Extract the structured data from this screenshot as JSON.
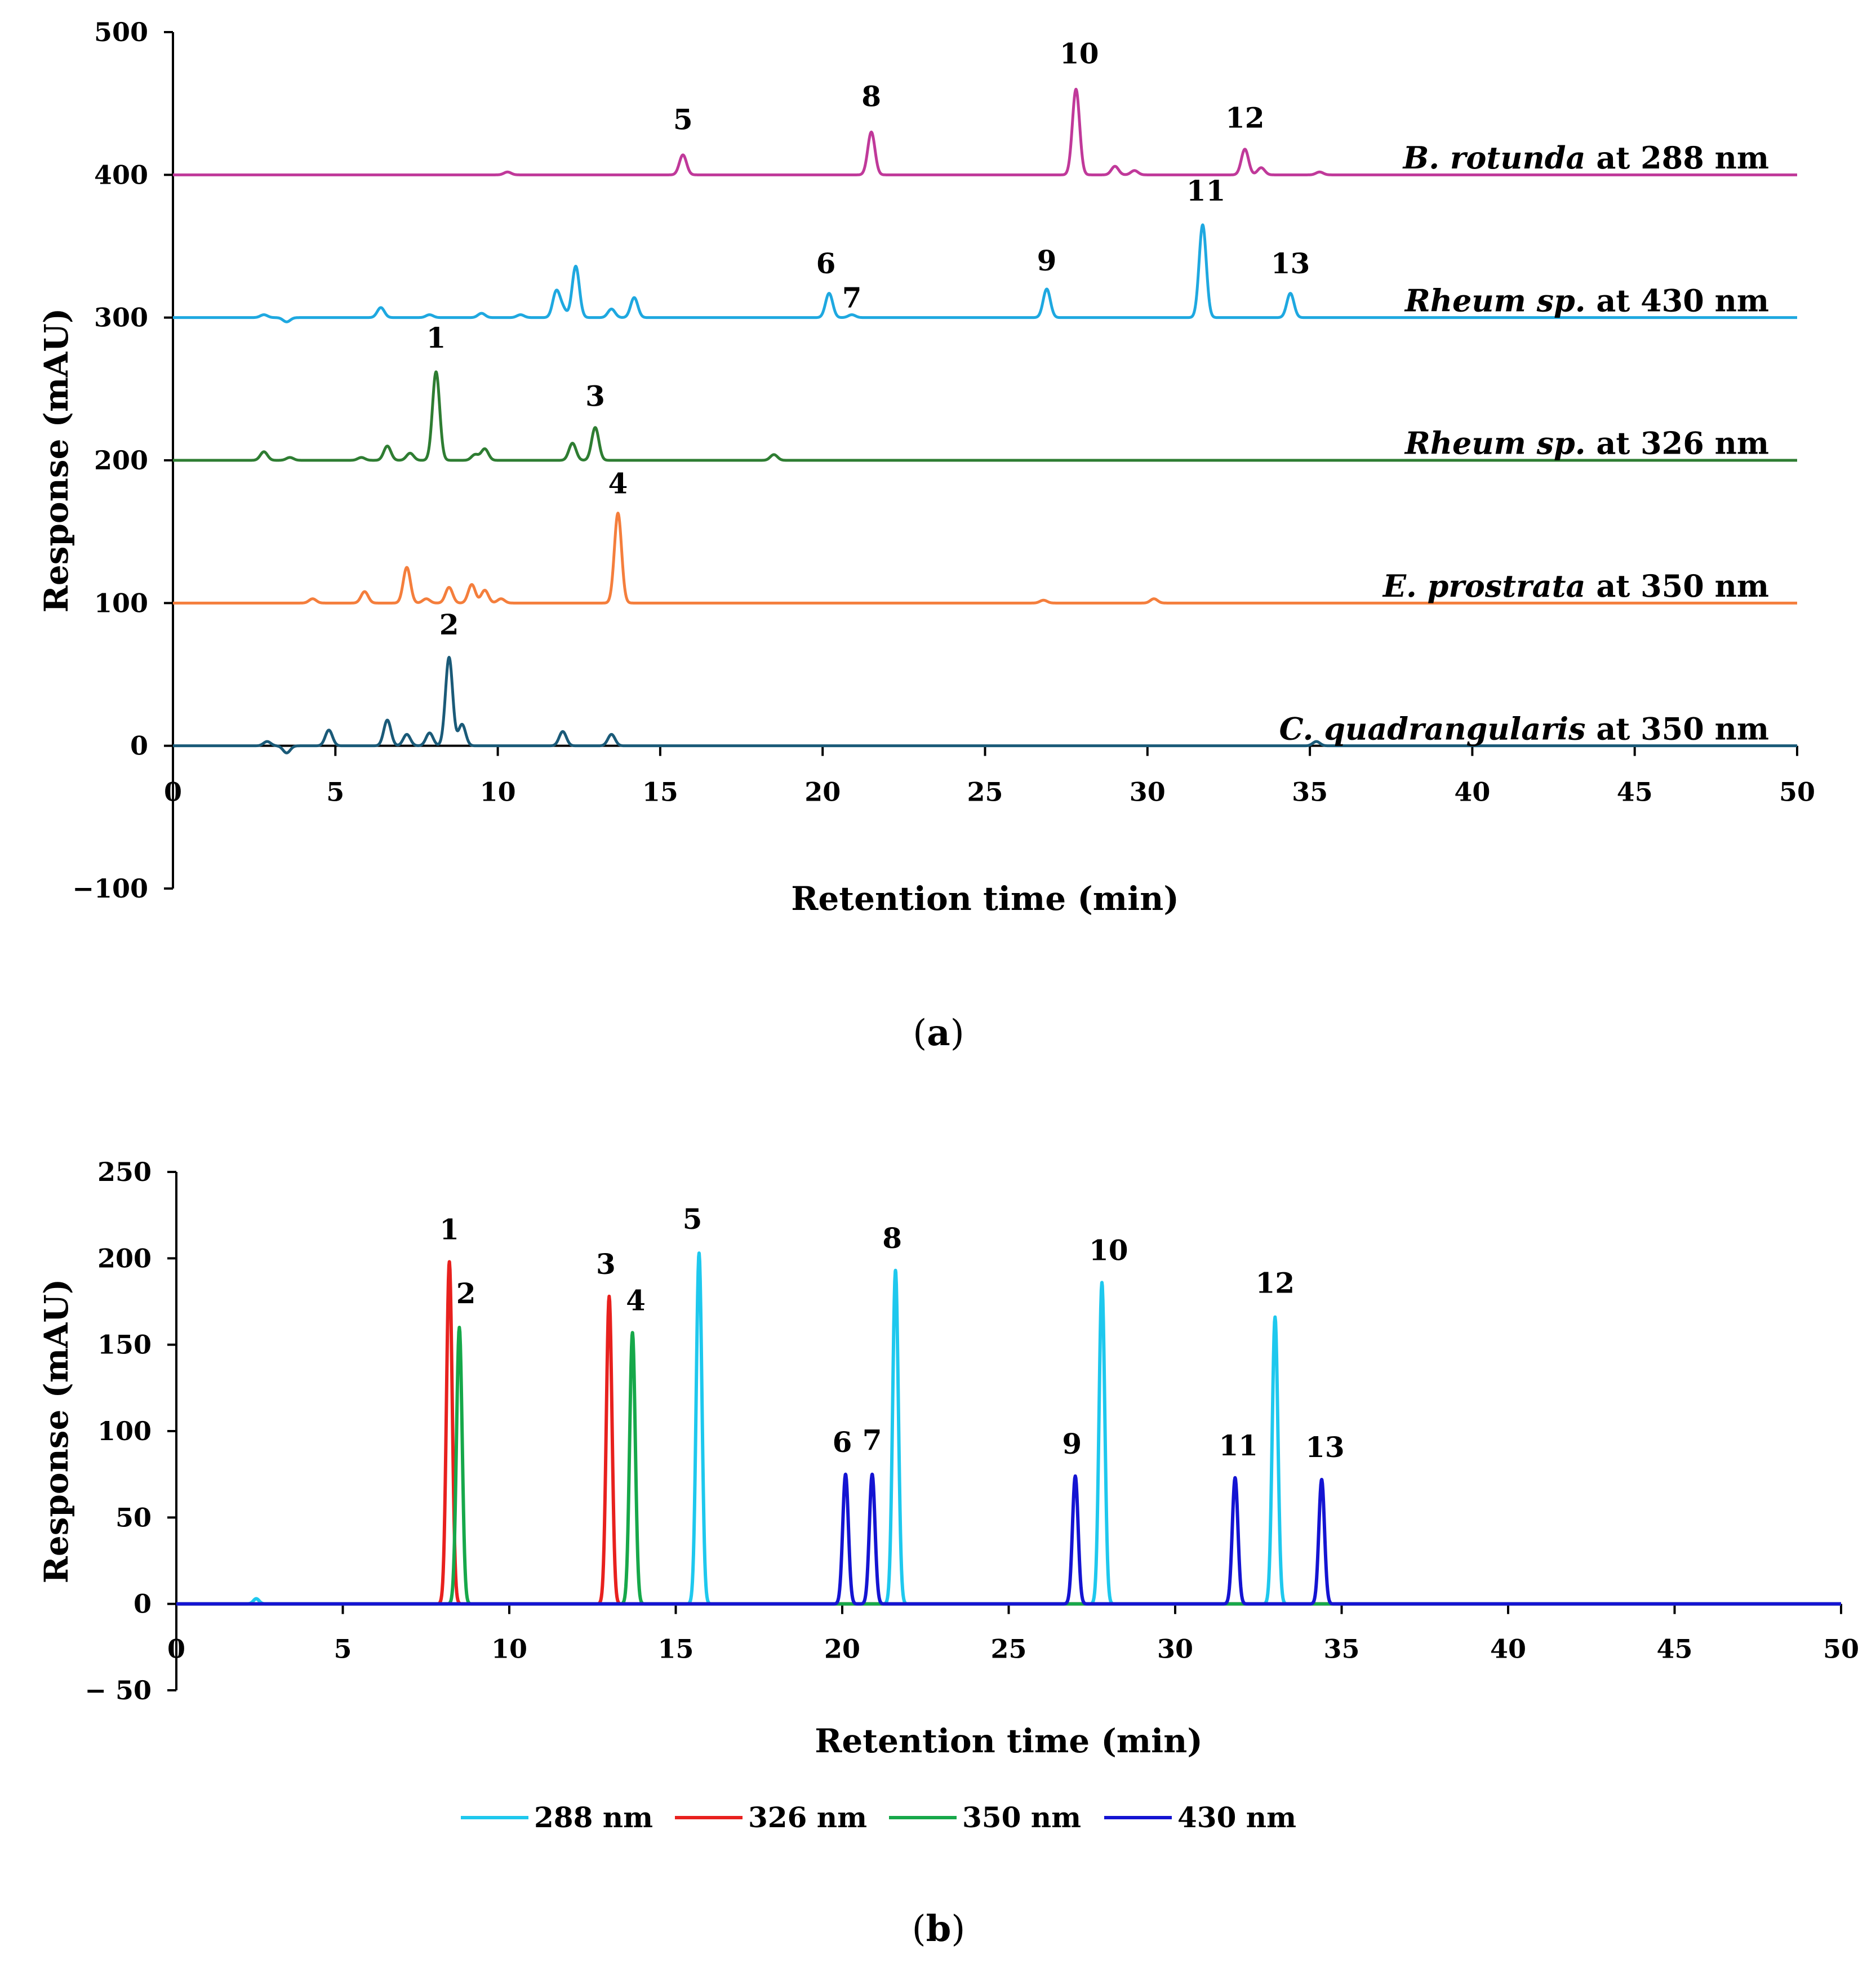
{
  "chart_data": [
    {
      "panel": "a",
      "type": "line",
      "caption": "(a)",
      "caption_letter": "a",
      "xlabel": "Retention time (min)",
      "ylabel": "Response (mAU)",
      "xlim": [
        0,
        50
      ],
      "ylim": [
        -100,
        500
      ],
      "xticks": [
        0,
        5,
        10,
        15,
        20,
        25,
        30,
        35,
        40,
        45,
        50
      ],
      "yticks": [
        500,
        400,
        300,
        200,
        100,
        0
      ],
      "ytick_labels": [
        "500",
        "400",
        "300",
        "200",
        "100",
        "0",
        "−100"
      ],
      "series": [
        {
          "name": "B. rotunda at 288 nm",
          "label_italic": "B. rotunda",
          "label_rest": " at 288 nm",
          "color": "#c0399a",
          "baseline": 400,
          "peaks": [
            [
              10.3,
              2
            ],
            [
              15.7,
              14
            ],
            [
              21.5,
              30
            ],
            [
              27.8,
              60
            ],
            [
              29.0,
              6
            ],
            [
              29.6,
              3
            ],
            [
              33.0,
              18
            ],
            [
              33.5,
              5
            ],
            [
              35.3,
              2
            ]
          ],
          "labels": [
            {
              "text": "5",
              "x": 15.7,
              "y": 432
            },
            {
              "text": "8",
              "x": 21.5,
              "y": 448
            },
            {
              "text": "10",
              "x": 27.9,
              "y": 478
            },
            {
              "text": "12",
              "x": 33.0,
              "y": 433
            }
          ]
        },
        {
          "name": "Rheum sp. at 430 nm",
          "label_italic": "Rheum sp.",
          "label_rest": " at 430 nm",
          "color": "#1ea8e0",
          "baseline": 300,
          "peaks": [
            [
              2.8,
              2
            ],
            [
              3.5,
              -3
            ],
            [
              6.4,
              7
            ],
            [
              7.9,
              2
            ],
            [
              9.5,
              3
            ],
            [
              10.7,
              2
            ],
            [
              11.8,
              18
            ],
            [
              12.0,
              6
            ],
            [
              12.4,
              36
            ],
            [
              13.5,
              6
            ],
            [
              14.2,
              14
            ],
            [
              20.2,
              17
            ],
            [
              20.9,
              2
            ],
            [
              26.9,
              20
            ],
            [
              31.7,
              65
            ],
            [
              34.4,
              17
            ]
          ],
          "labels": [
            {
              "text": "6",
              "x": 20.1,
              "y": 331
            },
            {
              "text": "7",
              "x": 20.9,
              "y": 307
            },
            {
              "text": "9",
              "x": 26.9,
              "y": 333
            },
            {
              "text": "11",
              "x": 31.8,
              "y": 382
            },
            {
              "text": "13",
              "x": 34.4,
              "y": 331
            }
          ]
        },
        {
          "name": "Rheum sp. at 326 nm",
          "label_italic": "Rheum sp.",
          "label_rest": " at 326 nm",
          "color": "#2e7d32",
          "baseline": 200,
          "peaks": [
            [
              2.8,
              6
            ],
            [
              3.6,
              2
            ],
            [
              5.8,
              2
            ],
            [
              6.6,
              10
            ],
            [
              7.3,
              5
            ],
            [
              8.1,
              62
            ],
            [
              9.3,
              4
            ],
            [
              9.6,
              8
            ],
            [
              12.3,
              12
            ],
            [
              13.0,
              23
            ],
            [
              18.5,
              4
            ]
          ],
          "labels": [
            {
              "text": "1",
              "x": 8.1,
              "y": 279
            },
            {
              "text": "3",
              "x": 13.0,
              "y": 238
            }
          ]
        },
        {
          "name": "E. prostrata at 350 nm",
          "label_italic": "E. prostrata",
          "label_rest": " at 350 nm",
          "color": "#f47e3c",
          "baseline": 100,
          "peaks": [
            [
              4.3,
              3
            ],
            [
              5.9,
              8
            ],
            [
              7.2,
              25
            ],
            [
              7.8,
              3
            ],
            [
              8.5,
              11
            ],
            [
              9.2,
              13
            ],
            [
              9.6,
              9
            ],
            [
              10.1,
              3
            ],
            [
              13.7,
              63
            ],
            [
              26.8,
              2
            ],
            [
              30.2,
              3
            ]
          ],
          "labels": [
            {
              "text": "4",
              "x": 13.7,
              "y": 177
            }
          ]
        },
        {
          "name": "C. quadrangularis at 350 nm",
          "label_italic": "C. quadrangularis",
          "label_rest": " at 350 nm",
          "color": "#1a5a78",
          "baseline": 0,
          "peaks": [
            [
              2.9,
              3
            ],
            [
              3.5,
              -5
            ],
            [
              4.8,
              11
            ],
            [
              6.6,
              18
            ],
            [
              7.2,
              8
            ],
            [
              7.9,
              9
            ],
            [
              8.5,
              62
            ],
            [
              8.9,
              15
            ],
            [
              12.0,
              10
            ],
            [
              13.5,
              8
            ],
            [
              35.2,
              3
            ]
          ],
          "labels": [
            {
              "text": "2",
              "x": 8.5,
              "y": 78
            }
          ]
        }
      ]
    },
    {
      "panel": "b",
      "type": "line",
      "caption": "(b)",
      "caption_letter": "b",
      "xlabel": "Retention time (min)",
      "ylabel": "Response (mAU)",
      "xlim": [
        0,
        50
      ],
      "ylim": [
        -50,
        250
      ],
      "xticks": [
        0,
        5,
        10,
        15,
        20,
        25,
        30,
        35,
        40,
        45,
        50
      ],
      "yticks": [
        250,
        200,
        150,
        100,
        50,
        0
      ],
      "ytick_labels": [
        "250",
        "200",
        "150",
        "100",
        "50",
        "0",
        "− 50"
      ],
      "legend_position": "bottom",
      "series": [
        {
          "name": "288 nm",
          "color": "#1ec8ee",
          "peaks": [
            [
              2.4,
              3
            ],
            [
              15.7,
              203
            ],
            [
              21.6,
              193
            ],
            [
              27.8,
              186
            ],
            [
              33.0,
              166
            ]
          ]
        },
        {
          "name": "326 nm",
          "color": "#e8211e",
          "peaks": [
            [
              8.2,
              198
            ],
            [
              13.0,
              178
            ]
          ]
        },
        {
          "name": "350 nm",
          "color": "#16a84a",
          "peaks": [
            [
              8.5,
              160
            ],
            [
              13.7,
              157
            ]
          ]
        },
        {
          "name": "430 nm",
          "color": "#1414d2",
          "peaks": [
            [
              20.1,
              75
            ],
            [
              20.9,
              75
            ],
            [
              27.0,
              74
            ],
            [
              31.8,
              73
            ],
            [
              34.4,
              72
            ]
          ]
        }
      ],
      "labels": [
        {
          "text": "1",
          "x": 8.2,
          "y": 211
        },
        {
          "text": "2",
          "x": 8.7,
          "y": 174
        },
        {
          "text": "3",
          "x": 12.9,
          "y": 191
        },
        {
          "text": "4",
          "x": 13.8,
          "y": 170
        },
        {
          "text": "5",
          "x": 15.5,
          "y": 217
        },
        {
          "text": "6",
          "x": 20.0,
          "y": 88
        },
        {
          "text": "7",
          "x": 20.9,
          "y": 89
        },
        {
          "text": "8",
          "x": 21.5,
          "y": 206
        },
        {
          "text": "9",
          "x": 26.9,
          "y": 87
        },
        {
          "text": "10",
          "x": 28.0,
          "y": 199
        },
        {
          "text": "11",
          "x": 31.9,
          "y": 86
        },
        {
          "text": "12",
          "x": 33.0,
          "y": 180
        },
        {
          "text": "13",
          "x": 34.5,
          "y": 85
        }
      ]
    }
  ]
}
